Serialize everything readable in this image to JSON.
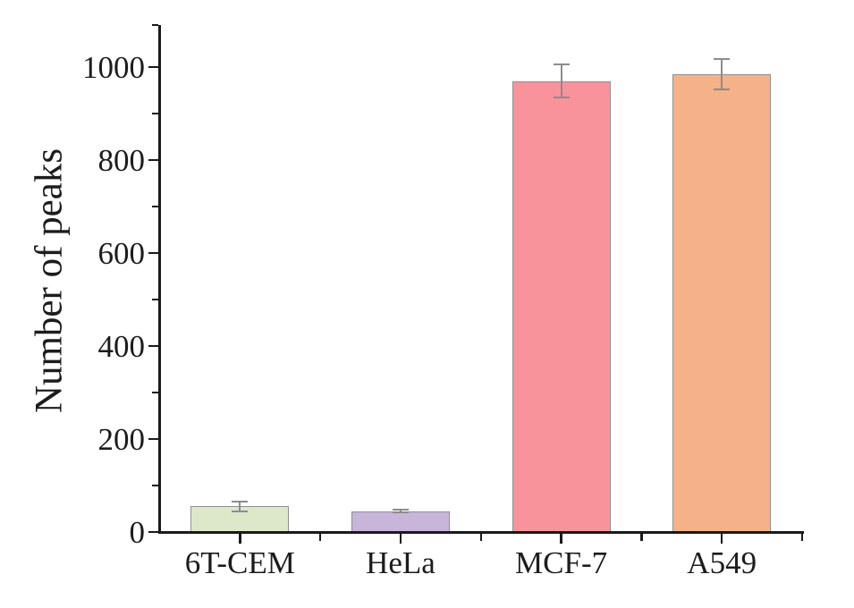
{
  "chart_data": {
    "type": "bar",
    "title": "",
    "xlabel": "",
    "ylabel": "Number of peaks",
    "categories": [
      "6T-CEM",
      "HeLa",
      "MCF-7",
      "A549"
    ],
    "values": [
      55,
      45,
      970,
      985
    ],
    "errors": [
      10,
      3,
      35,
      33
    ],
    "yticks": [
      0,
      200,
      400,
      600,
      800,
      1000
    ],
    "minor_yticks": [
      100,
      300,
      500,
      700,
      900,
      1090
    ],
    "ylim": [
      0,
      1090
    ],
    "grid": false,
    "legend": "none",
    "bar_colors": [
      "#dde8c9",
      "#c8b5da",
      "#f9939b",
      "#f5b289"
    ],
    "bar_border_color": "#909090",
    "error_bar_color": "#8c8c8c",
    "axis_color": "#1a1a1a",
    "text_color": "#1c1c1c",
    "background_color": "#ffffff"
  }
}
